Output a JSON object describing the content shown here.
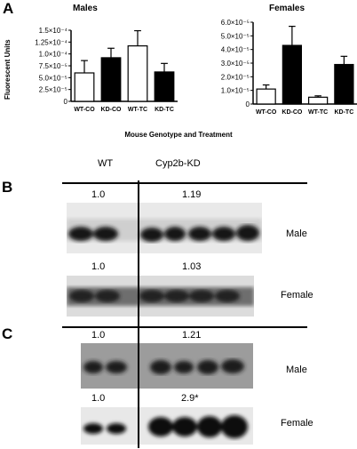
{
  "panels": {
    "A": "A",
    "B": "B",
    "C": "C"
  },
  "chart_data": [
    {
      "type": "bar",
      "title": "Males",
      "ylabel": "Fluorescent Units",
      "categories": [
        "WT-CO",
        "KD-CO",
        "WT-TC",
        "KD-TC"
      ],
      "values": [
        6e-05,
        9.2e-05,
        0.000117,
        6.2e-05
      ],
      "errors": [
        2.6e-05,
        2e-05,
        3.2e-05,
        1.8e-05
      ],
      "bar_colors": [
        "#ffffff",
        "#000000",
        "#ffffff",
        "#000000"
      ],
      "ylim": [
        0,
        0.00015
      ],
      "ticks": [
        0,
        2.5e-05,
        5e-05,
        7.5e-05,
        0.0001,
        0.000125,
        0.00015
      ],
      "tick_labels": [
        "0",
        "2.5×10⁻⁵",
        "5.0×10⁻⁵",
        "7.5×10⁻⁵",
        "1.0×10⁻⁴",
        "1.25×10⁻⁴",
        "1.5×10⁻⁴"
      ]
    },
    {
      "type": "bar",
      "title": "Females",
      "categories": [
        "WT-CO",
        "KD-CO",
        "WT-TC",
        "KD-TC"
      ],
      "values": [
        1.1e-05,
        4.3e-05,
        5e-06,
        2.9e-05
      ],
      "errors": [
        3e-06,
        1.4e-05,
        1e-06,
        6e-06
      ],
      "bar_colors": [
        "#ffffff",
        "#000000",
        "#ffffff",
        "#000000"
      ],
      "ylim": [
        0,
        6e-05
      ],
      "ticks": [
        0,
        1e-05,
        2e-05,
        3e-05,
        4e-05,
        5e-05,
        6e-05
      ],
      "tick_labels": [
        "0",
        "1.0×10⁻⁵",
        "2.0×10⁻⁵",
        "3.0×10⁻⁵",
        "4.0×10⁻⁵",
        "5.0×10⁻⁵",
        "6.0×10⁻⁵"
      ]
    }
  ],
  "x_title": "Mouse Genotype and Treatment",
  "lanes": {
    "wt": "WT",
    "kd": "Cyp2b-KD"
  },
  "blots": {
    "b_male": {
      "wt": "1.0",
      "kd": "1.19",
      "label": "Male"
    },
    "b_female": {
      "wt": "1.0",
      "kd": "1.03",
      "label": "Female"
    },
    "c_male": {
      "wt": "1.0",
      "kd": "1.21",
      "label": "Male"
    },
    "c_female": {
      "wt": "1.0",
      "kd": "2.9*",
      "label": "Female"
    }
  }
}
